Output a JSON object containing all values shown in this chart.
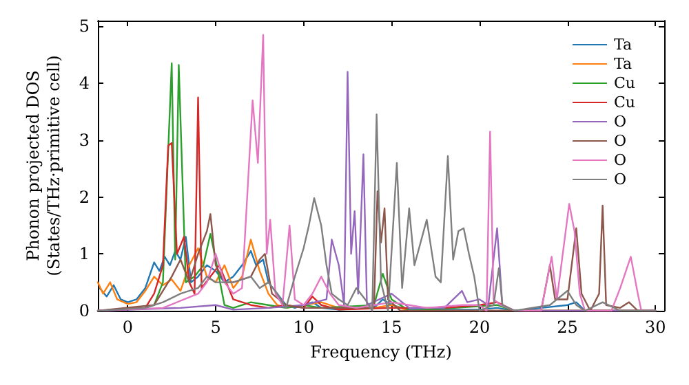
{
  "chart_data": {
    "type": "line",
    "xlabel": "Frequency (THz)",
    "ylabel": "Phonon projected DOS\n(States/THz·primitive cell)",
    "xlim": [
      -1.7,
      30.5
    ],
    "xticks": [
      0,
      5,
      10,
      15,
      20,
      25,
      30
    ],
    "ylim": [
      0,
      5.1
    ],
    "yticks": [
      0,
      1,
      2,
      3,
      4,
      5
    ],
    "grid": false,
    "legend": "top right",
    "marker": "none",
    "line_style": "solid",
    "series": [
      {
        "name": "Ta",
        "color": "#1f77b4",
        "x": [
          -1.6,
          -1.2,
          -0.8,
          -0.4,
          0,
          0.5,
          1,
          1.5,
          1.8,
          2.1,
          2.4,
          2.7,
          3.0,
          3.3,
          3.6,
          4.0,
          4.5,
          5,
          5.5,
          6,
          6.5,
          7,
          7.3,
          7.7,
          8,
          8.5,
          9,
          9.5,
          10,
          10.5,
          11,
          12,
          14,
          14.5,
          15,
          16,
          20,
          21,
          22,
          25,
          25.5,
          26,
          30
        ],
        "values": [
          0.4,
          0.25,
          0.45,
          0.2,
          0.15,
          0.2,
          0.4,
          0.85,
          0.7,
          0.95,
          0.8,
          1.05,
          0.9,
          1.3,
          0.5,
          0.6,
          0.8,
          0.7,
          0.5,
          0.6,
          0.8,
          1.05,
          0.8,
          0.9,
          0.5,
          0.3,
          0.1,
          0.05,
          0.1,
          0.15,
          0.05,
          0.02,
          0.05,
          0.2,
          0.1,
          0.02,
          0.02,
          0.05,
          0,
          0.1,
          0.15,
          0,
          0
        ]
      },
      {
        "name": "Ta",
        "color": "#ff7f0e",
        "x": [
          -1.7,
          -1.4,
          -1.0,
          -0.6,
          0,
          0.5,
          1,
          1.5,
          2,
          2.5,
          3,
          3.5,
          4,
          4.5,
          5,
          5.5,
          6,
          6.5,
          7,
          7.5,
          8,
          8.5,
          9,
          10,
          11,
          12,
          14,
          15,
          16,
          30
        ],
        "values": [
          0.5,
          0.3,
          0.5,
          0.2,
          0.12,
          0.15,
          0.35,
          0.6,
          0.45,
          0.55,
          0.35,
          0.8,
          1.1,
          0.6,
          0.5,
          0.8,
          0.4,
          0.6,
          1.25,
          0.7,
          0.3,
          0.1,
          0.05,
          0.1,
          0.15,
          0.05,
          0.05,
          0.1,
          0,
          0
        ]
      },
      {
        "name": "Cu",
        "color": "#2ca02c",
        "x": [
          -1.7,
          1,
          1.5,
          2,
          2.5,
          2.7,
          2.9,
          3.3,
          3.8,
          4.3,
          4.7,
          5,
          5.5,
          6,
          7,
          8,
          9,
          10,
          11,
          14,
          14.5,
          15,
          16,
          21,
          22,
          30
        ],
        "values": [
          0,
          0.05,
          0.1,
          0.5,
          4.35,
          0.9,
          4.32,
          0.5,
          0.6,
          0.8,
          1.35,
          0.9,
          0.1,
          0.05,
          0.15,
          0.1,
          0.05,
          0.1,
          0.05,
          0.1,
          0.65,
          0.2,
          0,
          0.1,
          0,
          0
        ]
      },
      {
        "name": "Cu",
        "color": "#d62728",
        "x": [
          -1.7,
          1,
          1.5,
          2,
          2.3,
          2.5,
          2.8,
          3.2,
          3.5,
          3.8,
          4.0,
          4.2,
          4.7,
          5.2,
          5.6,
          6,
          7,
          8,
          9,
          10,
          10.5,
          11,
          12,
          15,
          18,
          20,
          21,
          22,
          30
        ],
        "values": [
          0,
          0.05,
          0.3,
          0.8,
          2.9,
          2.95,
          1.0,
          1.3,
          0.5,
          0.3,
          3.75,
          0.4,
          0.6,
          0.8,
          0.5,
          0.2,
          0.1,
          0.05,
          0.1,
          0.05,
          0.25,
          0.1,
          0.02,
          0.05,
          0.05,
          0.1,
          0.15,
          0,
          0
        ]
      },
      {
        "name": "O",
        "color": "#9467bd",
        "x": [
          -1.7,
          3,
          5,
          6,
          8,
          10,
          11.3,
          11.6,
          12.0,
          12.3,
          12.5,
          12.7,
          12.9,
          13.1,
          13.4,
          13.6,
          15,
          16,
          18,
          19,
          19.3,
          20,
          20.5,
          21.0,
          21.3,
          22,
          30
        ],
        "values": [
          0,
          0.05,
          0.1,
          0.02,
          0.05,
          0.1,
          0.2,
          1.25,
          0.8,
          0.1,
          4.2,
          1.0,
          1.75,
          0.3,
          2.75,
          0.1,
          0.3,
          0.05,
          0.05,
          0.35,
          0.15,
          0.2,
          0.1,
          1.45,
          0.1,
          0,
          0
        ]
      },
      {
        "name": "O",
        "color": "#8c564b",
        "x": [
          -1.7,
          1.5,
          2.5,
          3,
          3.5,
          4,
          4.5,
          4.7,
          5,
          5.5,
          6,
          7,
          7.5,
          7.8,
          8.2,
          9,
          10,
          14,
          14.2,
          14.4,
          14.6,
          14.8,
          15.5,
          23.5,
          24,
          24.3,
          25,
          25.5,
          25.8,
          26.3,
          26.8,
          27,
          27.2,
          28,
          28.5,
          29,
          30
        ],
        "values": [
          0,
          0.1,
          0.6,
          0.9,
          0.5,
          1.0,
          1.4,
          1.7,
          0.8,
          0.5,
          0.5,
          0.6,
          0.9,
          1.0,
          0.3,
          0.1,
          0.05,
          0.05,
          2.1,
          1.2,
          1.8,
          0.2,
          0,
          0,
          0.8,
          0.2,
          0.2,
          1.45,
          0.3,
          0,
          0.3,
          1.85,
          0.1,
          0.05,
          0.15,
          0,
          0
        ]
      },
      {
        "name": "O",
        "color": "#e377c2",
        "x": [
          -1.7,
          2,
          4,
          4.5,
          5,
          5.5,
          6,
          6.5,
          7.1,
          7.4,
          7.7,
          7.9,
          8.1,
          8.4,
          8.8,
          9.2,
          9.5,
          10,
          10.5,
          11,
          11.5,
          12,
          13,
          14,
          15,
          16,
          17,
          19,
          20,
          20.4,
          20.6,
          20.8,
          21.2,
          22,
          23.5,
          24.1,
          24.4,
          25.1,
          25.4,
          25.7,
          26,
          27.5,
          28,
          28.6,
          29,
          29.2,
          30
        ],
        "values": [
          0,
          0.05,
          0.3,
          0.5,
          1.0,
          0.5,
          0.3,
          0.4,
          3.7,
          2.6,
          4.85,
          1.0,
          1.6,
          0.3,
          0.1,
          1.5,
          0.2,
          0.1,
          0.3,
          0.6,
          0.3,
          0.1,
          0.05,
          0.1,
          0.15,
          0.1,
          0.05,
          0.1,
          0.1,
          0,
          3.15,
          0.2,
          0.1,
          0,
          0,
          0.95,
          0.2,
          1.88,
          1.4,
          0.3,
          0,
          0,
          0.4,
          0.95,
          0.3,
          0,
          0
        ]
      },
      {
        "name": "O",
        "color": "#7f7f7f",
        "x": [
          -1.7,
          1,
          2,
          3,
          4,
          4.5,
          5,
          6,
          7,
          7.5,
          8,
          8.5,
          9,
          9.5,
          10,
          10.3,
          10.6,
          11,
          11.3,
          11.6,
          12,
          12.5,
          13,
          13.5,
          13.9,
          14.15,
          14.4,
          14.8,
          15.3,
          15.6,
          16,
          16.3,
          17,
          17.5,
          17.8,
          18.2,
          18.5,
          18.8,
          19.1,
          19.4,
          19.7,
          20,
          20.8,
          21.1,
          21.3,
          22,
          24,
          25,
          25.5,
          26,
          27,
          28,
          30
        ],
        "values": [
          0,
          0.05,
          0.15,
          0.3,
          0.4,
          0.6,
          0.5,
          0.5,
          0.6,
          0.4,
          0.5,
          0.3,
          0.05,
          0.6,
          1.1,
          1.5,
          1.98,
          1.5,
          0.8,
          0.3,
          0.2,
          0.1,
          0.4,
          0.2,
          0,
          3.45,
          0.5,
          0,
          2.6,
          0.4,
          1.8,
          0.8,
          1.6,
          0.6,
          0.5,
          2.72,
          0.9,
          1.4,
          1.45,
          1.0,
          0.6,
          0,
          0.1,
          0.75,
          0.1,
          0,
          0.1,
          0.35,
          0.1,
          0,
          0.15,
          0,
          0
        ]
      }
    ]
  }
}
